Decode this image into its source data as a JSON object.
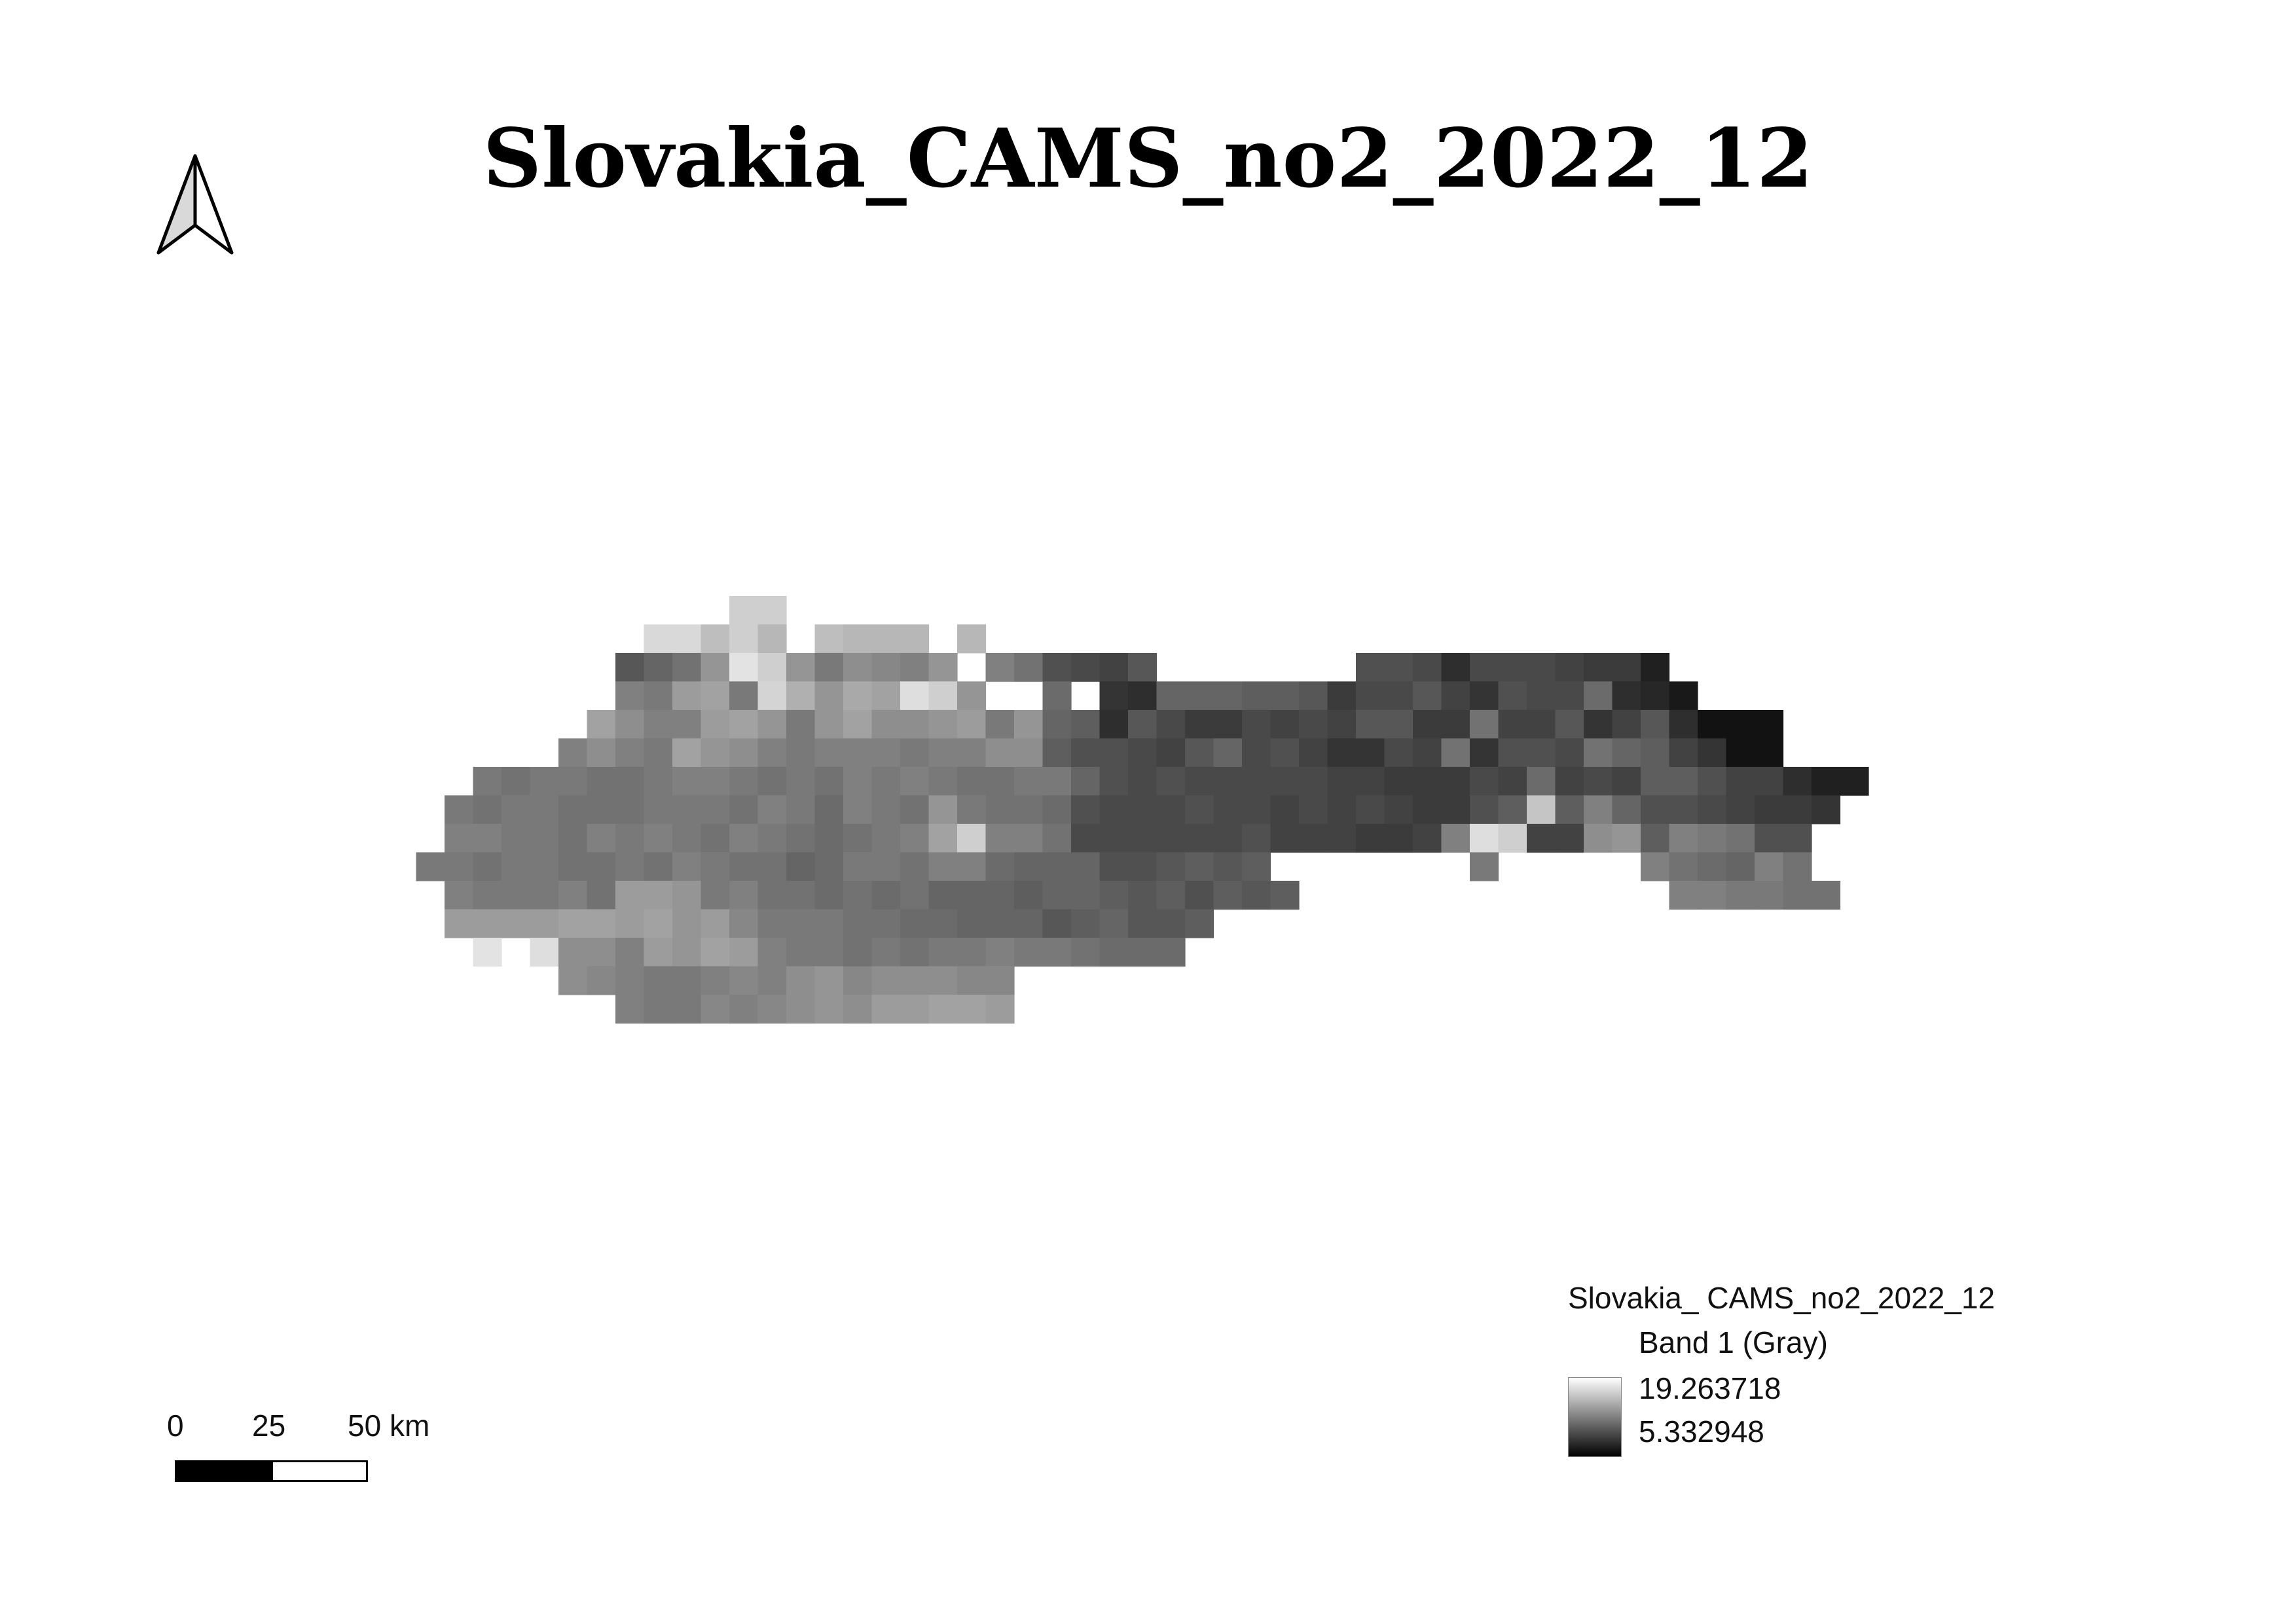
{
  "title": "Slovakia_CAMS_no2_2022_12",
  "north_arrow": {
    "icon": "north-arrow-icon"
  },
  "scale_bar": {
    "labels": [
      "0",
      "25",
      "50 km"
    ]
  },
  "legend": {
    "layer_name": "Slovakia_ CAMS_no2_2022_12",
    "band_label": "Band 1 (Gray)",
    "max_value": "19.263718",
    "min_value": "5.332948",
    "ramp_colors": [
      "#ffffff",
      "#000000"
    ]
  },
  "raster": {
    "value_range": [
      5.332948,
      19.263718
    ],
    "rows": [
      "...........................................................................",
      "...........................................................................",
      "..............ff.....#####.......................................",
      "...........ddAfB.ABBB#B..........................................",
      "..........PNLGbfGKHIJG.JLQRSP.......QQRVRRRSTTX...........",
      "..........JKFEKeCGDEcfG..M.UVNNNOOPTRRPSUQRRMVWY.........",
      ".........EHJJFEGKGEHHGFKGNOVPRTTRSRSPPTTLSSPUSPVZZZ......",
      "........JHJKEGHJKJJJKJJHHOQQRSPNRQSUURSLUQQRLNOSUZZ......",
      ".....KLKKLLKJJKLKLJKJKLLKKNQRQRRRRRSSTTTRSMSRSOOQSSVXX....",
      "....KLKKLLLKKKLJKMJKLGKLLMQRRRQRRSRSRSTTQOhOJNQQRSTTU....",
      "....JJKKLJKJKLJKLMLKJEfJJLRRRRRRQSSSTTSJcfSSHGOJKLQQ......",
      "...KKLKKLLKLJKLLNMKKLJJMNNNQQPOPO.......K.....JLMNJL......",
      "....JKKKJLFFGKJLLMLMLNNNONNOPOQOPO.............JJKKLL.......",
      "....FFFFEEFEGFIKKKLLMMNNNPONPPO..........................",
      ".....b.cHHJFGEFJKKLKLKKJKKLMMM..........................",
      "........HIJKKJIJHGIHHHII................................",
      "..........JKKIJIHGHFFEEF................................"
    ]
  }
}
